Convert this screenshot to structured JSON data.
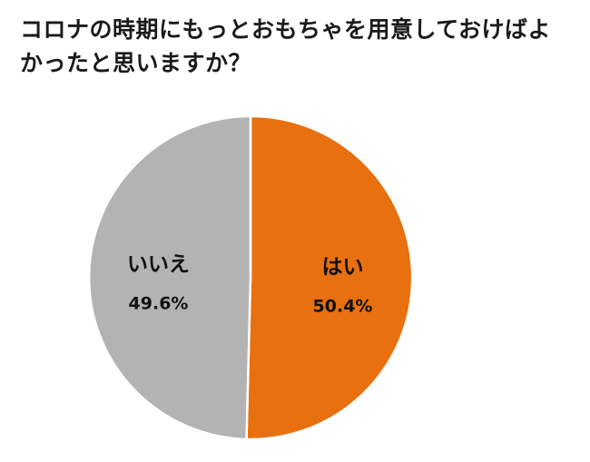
{
  "chart_data": {
    "type": "pie",
    "title": "コロナの時期にもっとおもちゃを用意しておけばよかったと思いますか？",
    "categories": [
      "はい",
      "いいえ"
    ],
    "values": [
      50.4,
      49.6
    ],
    "value_labels": [
      "50.4%",
      "49.6%"
    ],
    "colors": [
      "#E8700E",
      "#B3B3B3"
    ],
    "start_angle": "top",
    "direction": "clockwise",
    "legend": "none",
    "labels": "inside-slices"
  }
}
